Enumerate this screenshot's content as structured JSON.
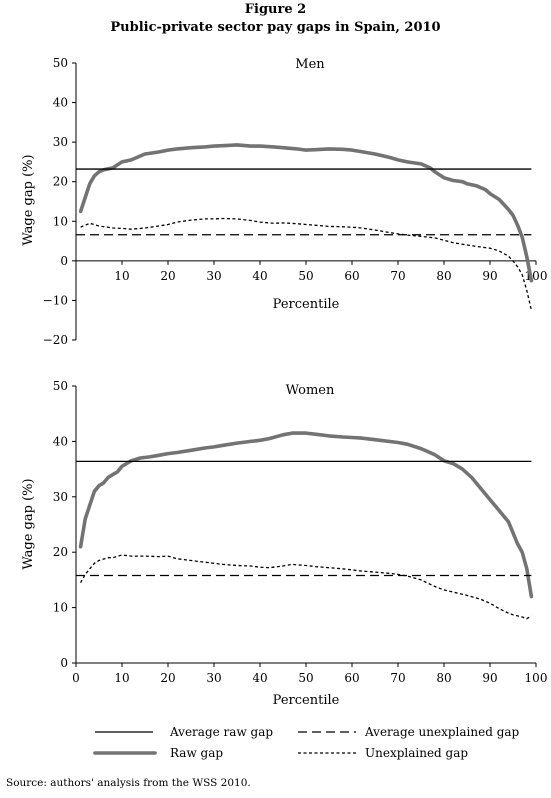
{
  "figure": {
    "label": "Figure 2",
    "title": "Public-private sector pay gaps in Spain, 2010",
    "source": "Source: authors' analysis from the WSS 2010."
  },
  "legend": {
    "items": [
      {
        "key": "avg_raw",
        "label": "Average raw gap"
      },
      {
        "key": "avg_unexpl",
        "label": "Average unexplained gap"
      },
      {
        "key": "raw",
        "label": "Raw gap"
      },
      {
        "key": "unexpl",
        "label": "Unexplained gap"
      }
    ]
  },
  "chart_data": [
    {
      "type": "line",
      "title": "Men",
      "xlabel": "Percentile",
      "ylabel": "Wage gap (%)",
      "xlim": [
        0,
        100
      ],
      "ylim": [
        -20,
        50
      ],
      "xticks": [
        10,
        20,
        30,
        40,
        50,
        60,
        70,
        80,
        90,
        100
      ],
      "yticks": [
        -20,
        -10,
        0,
        10,
        20,
        30,
        40,
        50
      ],
      "xaxis_at_zero": true,
      "series": [
        {
          "key": "raw",
          "x": [
            1,
            2,
            3,
            4,
            5,
            6,
            8,
            10,
            12,
            15,
            18,
            20,
            22,
            25,
            28,
            30,
            32,
            35,
            38,
            40,
            43,
            45,
            48,
            50,
            52,
            55,
            58,
            60,
            62,
            65,
            68,
            70,
            72,
            75,
            77,
            78,
            80,
            82,
            84,
            85,
            87,
            89,
            90,
            92,
            94,
            95,
            96,
            97,
            98,
            99
          ],
          "y": [
            12.5,
            16,
            19.5,
            21.5,
            22.5,
            23,
            23.5,
            25,
            25.5,
            27,
            27.5,
            28,
            28.3,
            28.6,
            28.8,
            29,
            29.1,
            29.3,
            29,
            29,
            28.8,
            28.6,
            28.3,
            28,
            28.1,
            28.3,
            28.2,
            28,
            27.6,
            27,
            26.2,
            25.5,
            25,
            24.5,
            23.5,
            22.5,
            21,
            20.3,
            20,
            19.5,
            19,
            18,
            17,
            15.5,
            13,
            11.5,
            9,
            6,
            1,
            -5
          ]
        },
        {
          "key": "unexpl",
          "x": [
            1,
            3,
            5,
            8,
            10,
            12,
            15,
            18,
            20,
            22,
            25,
            28,
            30,
            32,
            35,
            38,
            40,
            43,
            45,
            48,
            50,
            53,
            55,
            58,
            60,
            62,
            65,
            68,
            70,
            72,
            75,
            78,
            80,
            82,
            85,
            88,
            90,
            92,
            94,
            95,
            96,
            97,
            98,
            99
          ],
          "y": [
            8.5,
            9.5,
            8.8,
            8.3,
            8.2,
            8,
            8.3,
            8.8,
            9.2,
            9.8,
            10.3,
            10.6,
            10.6,
            10.7,
            10.6,
            10.2,
            9.8,
            9.5,
            9.6,
            9.4,
            9.2,
            8.9,
            8.7,
            8.6,
            8.5,
            8.3,
            7.8,
            7.2,
            6.8,
            6.5,
            6.2,
            5.8,
            5.2,
            4.6,
            4,
            3.5,
            3.2,
            2.5,
            1.2,
            0,
            -1.5,
            -3.5,
            -7.5,
            -12.5
          ]
        },
        {
          "key": "avg_raw",
          "value": 23.2
        },
        {
          "key": "avg_unexpl",
          "value": 6.6
        }
      ]
    },
    {
      "type": "line",
      "title": "Women",
      "xlabel": "Percentile",
      "ylabel": "Wage gap (%)",
      "xlim": [
        0,
        100
      ],
      "ylim": [
        0,
        50
      ],
      "xticks": [
        0,
        10,
        20,
        30,
        40,
        50,
        60,
        70,
        80,
        90,
        100
      ],
      "yticks": [
        0,
        10,
        20,
        30,
        40,
        50
      ],
      "xaxis_at_zero": false,
      "series": [
        {
          "key": "raw",
          "x": [
            1,
            2,
            3,
            4,
            5,
            6,
            7,
            8,
            9,
            10,
            12,
            14,
            16,
            18,
            20,
            22,
            25,
            28,
            30,
            32,
            35,
            38,
            40,
            42,
            45,
            47,
            50,
            52,
            55,
            58,
            60,
            62,
            65,
            68,
            70,
            72,
            75,
            78,
            80,
            82,
            84,
            86,
            88,
            90,
            92,
            93,
            94,
            95,
            96,
            97,
            98,
            99
          ],
          "y": [
            21,
            26,
            28.5,
            31,
            32,
            32.5,
            33.5,
            34,
            34.5,
            35.5,
            36.5,
            37,
            37.2,
            37.5,
            37.8,
            38,
            38.4,
            38.8,
            39,
            39.3,
            39.7,
            40,
            40.2,
            40.5,
            41.2,
            41.5,
            41.5,
            41.3,
            41,
            40.8,
            40.7,
            40.6,
            40.3,
            40,
            39.8,
            39.5,
            38.7,
            37.6,
            36.5,
            36,
            35,
            33.5,
            31.5,
            29.5,
            27.5,
            26.5,
            25.5,
            23.5,
            21.5,
            20,
            17,
            12
          ]
        },
        {
          "key": "unexpl",
          "x": [
            1,
            2,
            3,
            4,
            5,
            7,
            8,
            10,
            12,
            15,
            18,
            20,
            22,
            25,
            28,
            30,
            32,
            35,
            38,
            40,
            42,
            45,
            47,
            50,
            52,
            55,
            58,
            60,
            62,
            65,
            68,
            70,
            72,
            75,
            78,
            80,
            82,
            85,
            88,
            90,
            92,
            94,
            95,
            96,
            97,
            98,
            99
          ],
          "y": [
            14.5,
            16,
            17,
            18,
            18.5,
            19,
            19,
            19.5,
            19.3,
            19.3,
            19.2,
            19.3,
            18.8,
            18.5,
            18.2,
            18,
            17.8,
            17.6,
            17.5,
            17.3,
            17.2,
            17.5,
            17.8,
            17.6,
            17.4,
            17.2,
            17,
            16.8,
            16.6,
            16.4,
            16.2,
            16,
            15.7,
            15,
            13.8,
            13.2,
            12.8,
            12.2,
            11.5,
            10.8,
            9.8,
            9,
            8.7,
            8.5,
            8.3,
            8,
            8.5
          ]
        },
        {
          "key": "avg_raw",
          "value": 36.4
        },
        {
          "key": "avg_unexpl",
          "value": 15.8
        }
      ]
    }
  ]
}
